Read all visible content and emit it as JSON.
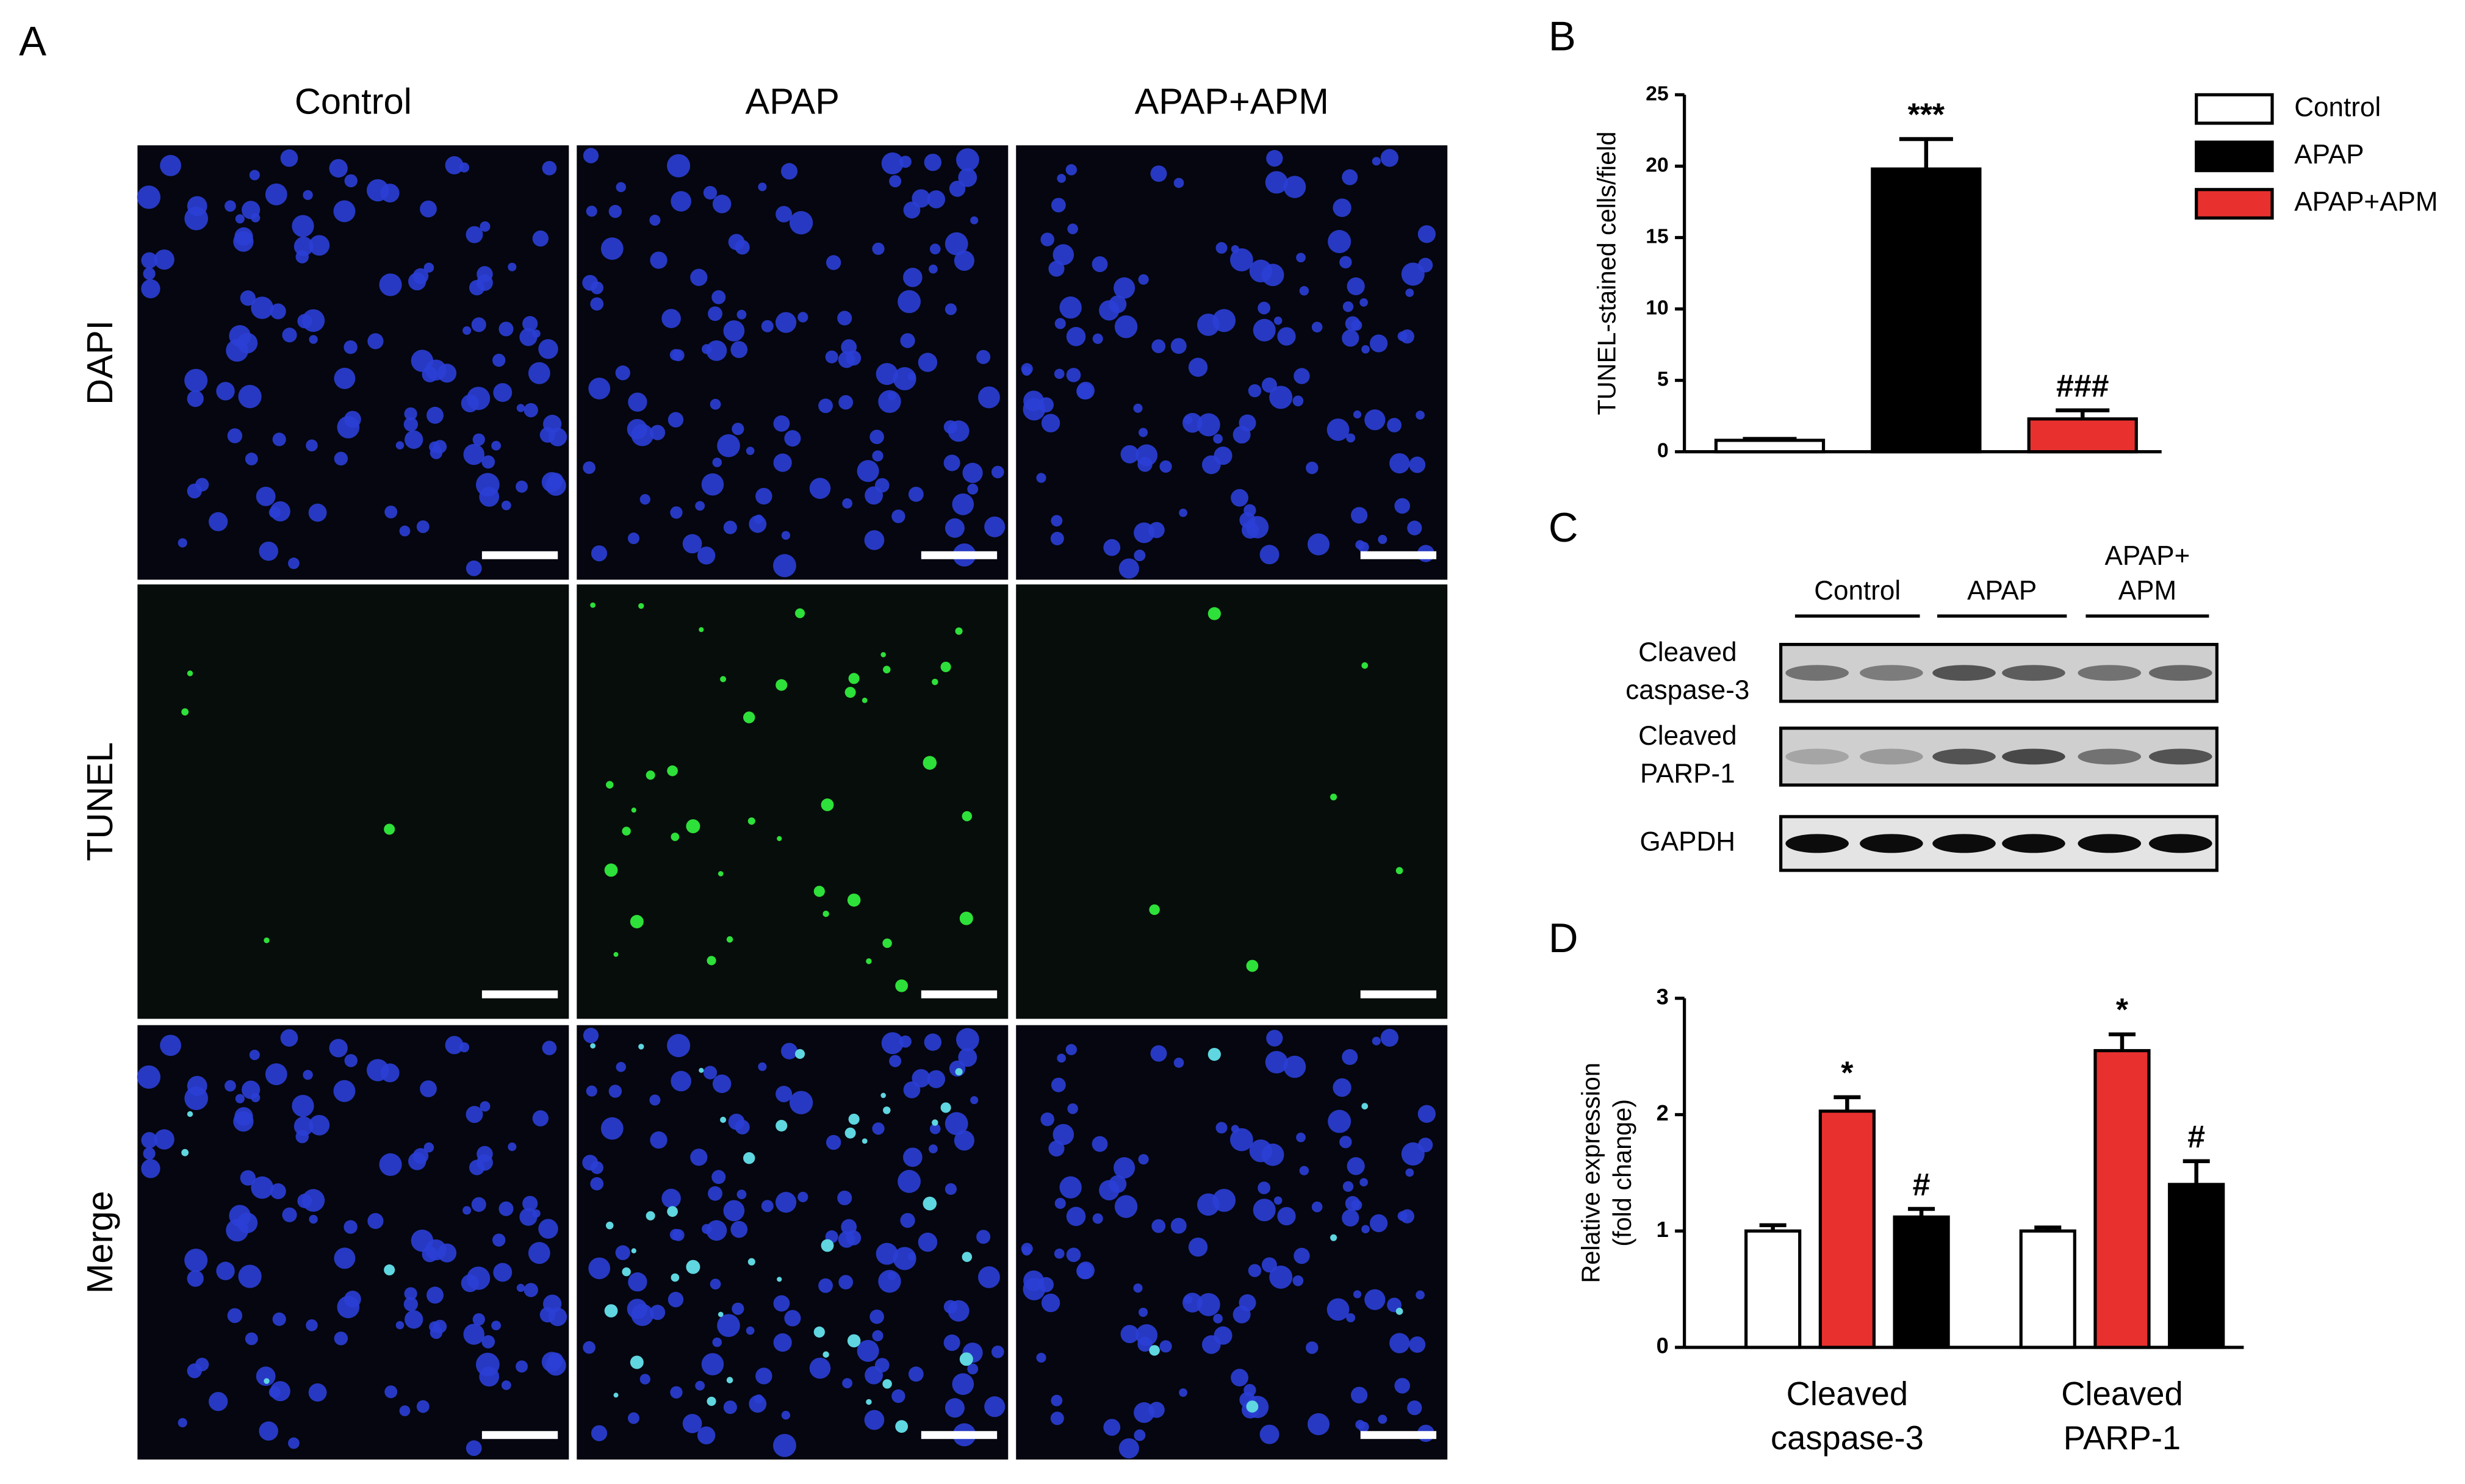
{
  "panels": {
    "A": {
      "label": "A",
      "columns": [
        "Control",
        "APAP",
        "APAP+APM"
      ],
      "rows": [
        "DAPI",
        "TUNEL",
        "Merge"
      ]
    },
    "C": {
      "label": "C",
      "groups": [
        [
          "Control"
        ],
        [
          "APAP"
        ],
        [
          "APAP+",
          "APM"
        ]
      ],
      "rows": [
        [
          "Cleaved",
          "caspase-3"
        ],
        [
          "Cleaved",
          "PARP-1"
        ],
        [
          "GAPDH"
        ]
      ]
    }
  },
  "chart_data": [
    {
      "type": "bar",
      "panel_label": "B",
      "y_label": [
        "TUNEL-stained cells/field"
      ],
      "ylim": [
        0,
        25
      ],
      "yticks": [
        0,
        5,
        10,
        15,
        20,
        25
      ],
      "legend": "right",
      "series": [
        {
          "name": "Control",
          "color": "#ffffff",
          "values": [
            0.8
          ],
          "errors": [
            0.1
          ]
        },
        {
          "name": "APAP",
          "color": "#000000",
          "values": [
            19.8
          ],
          "errors": [
            2.1
          ],
          "annotations": [
            "***"
          ]
        },
        {
          "name": "APAP+APM",
          "color": "#e8312f",
          "values": [
            2.3
          ],
          "errors": [
            0.6
          ],
          "annotations": [
            "###"
          ]
        }
      ]
    },
    {
      "type": "bar",
      "panel_label": "D",
      "y_label": [
        "Relative expression",
        "(fold change)"
      ],
      "ylim": [
        0,
        3
      ],
      "yticks": [
        0,
        1,
        2,
        3
      ],
      "categories": [
        [
          "Cleaved",
          "caspase-3"
        ],
        [
          "Cleaved",
          "PARP-1"
        ]
      ],
      "series": [
        {
          "color": "#ffffff",
          "values": [
            1.0,
            1.0
          ],
          "errors": [
            0.05,
            0.03
          ]
        },
        {
          "color": "#e8312f",
          "values": [
            2.03,
            2.55
          ],
          "errors": [
            0.12,
            0.14
          ],
          "annotations": [
            "*",
            "*"
          ]
        },
        {
          "color": "#000000",
          "values": [
            1.12,
            1.4
          ],
          "errors": [
            0.07,
            0.2
          ],
          "annotations": [
            "#",
            "#"
          ]
        }
      ]
    }
  ]
}
